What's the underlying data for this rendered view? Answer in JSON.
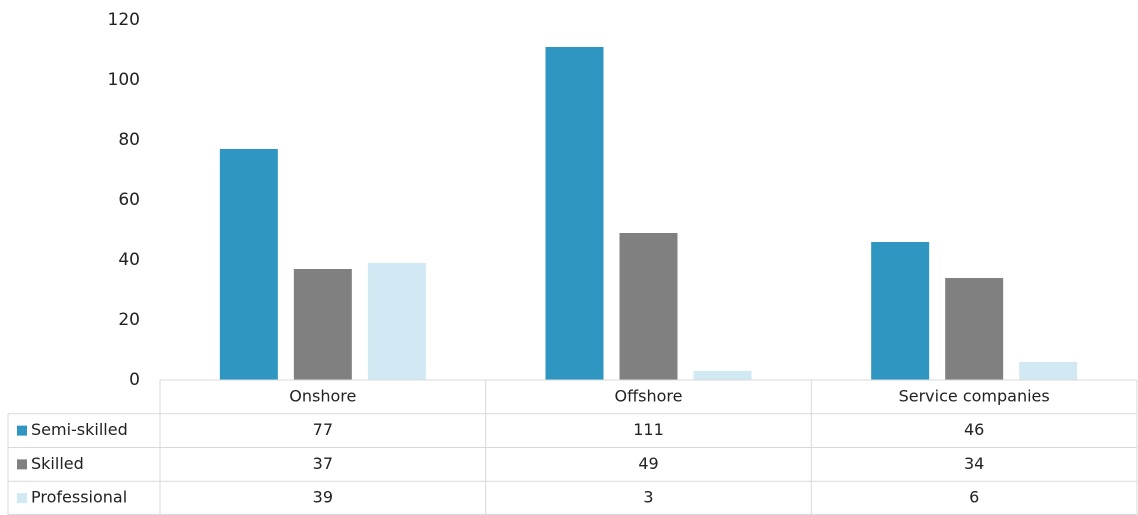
{
  "chart_data": {
    "type": "bar",
    "categories": [
      "Onshore",
      "Offshore",
      "Service companies"
    ],
    "series": [
      {
        "name": "Semi-skilled",
        "color": "#2e96c0",
        "values": [
          77,
          111,
          46
        ]
      },
      {
        "name": "Skilled",
        "color": "#808080",
        "values": [
          37,
          49,
          34
        ]
      },
      {
        "name": "Professional",
        "color": "#d0e9f2",
        "values": [
          39,
          3,
          6
        ]
      }
    ],
    "ylim": [
      0,
      120
    ],
    "yticks": [
      0,
      20,
      40,
      60,
      80,
      100,
      120
    ],
    "data_table": true
  }
}
